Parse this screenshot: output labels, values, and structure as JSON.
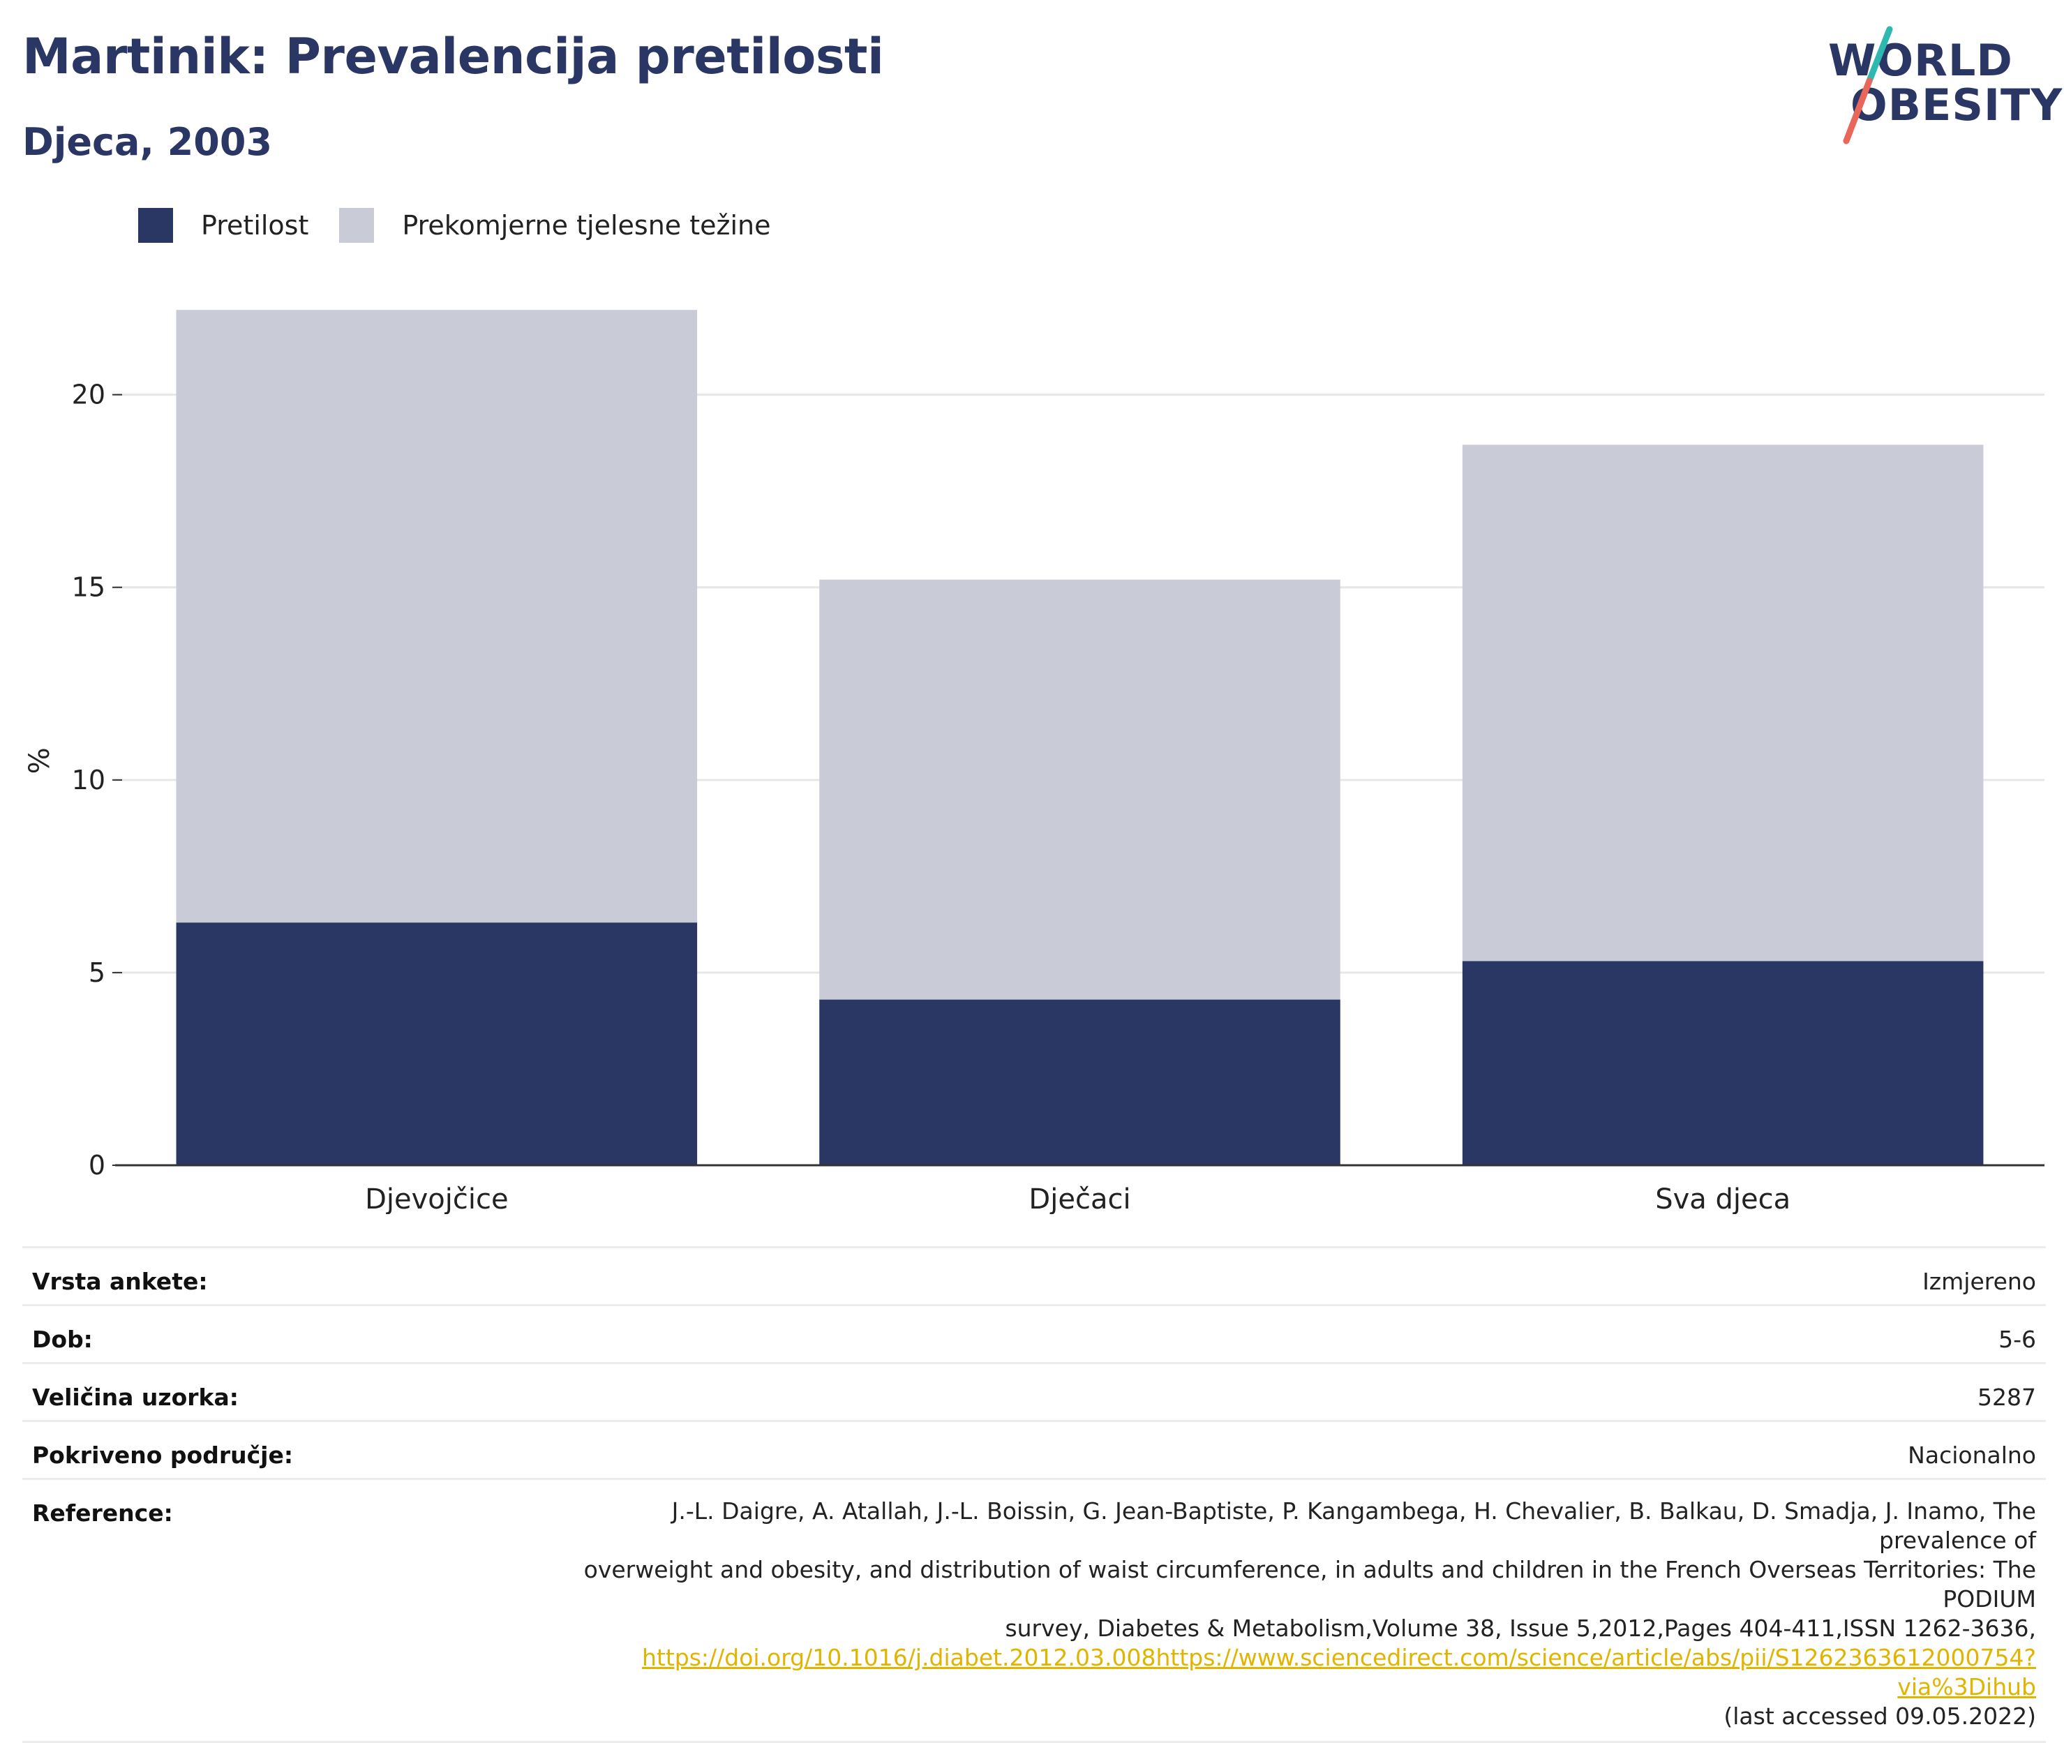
{
  "header": {
    "title": "Martinik: Prevalencija pretilosti",
    "subtitle": "Djeca, 2003"
  },
  "logo": {
    "line1": "WORLD",
    "line2": "OBESITY"
  },
  "colors": {
    "title": "#2a3663",
    "obesity": "#2a3663",
    "overweight": "#c9ccd7",
    "logo_slash_teal": "#2fb8b0",
    "logo_slash_coral": "#e8675a",
    "link": "#e0b400"
  },
  "chart_data": {
    "type": "bar",
    "stacked": true,
    "categories": [
      "Djevojčice",
      "Dječaci",
      "Sva djeca"
    ],
    "series": [
      {
        "name": "Pretilost",
        "values": [
          6.3,
          4.3,
          5.3
        ]
      },
      {
        "name": "Prekomjerne tjelesne težine",
        "values": [
          15.9,
          10.9,
          13.4
        ]
      }
    ],
    "totals": [
      22.2,
      15.2,
      18.7
    ],
    "ylabel": "%",
    "ylim": [
      0,
      23
    ],
    "yticks": [
      0,
      5,
      10,
      15,
      20
    ],
    "grid": true,
    "legend": "top-left"
  },
  "meta": {
    "survey_type": {
      "label": "Vrsta ankete:",
      "value": "Izmjereno"
    },
    "age": {
      "label": "Dob:",
      "value": "5-6"
    },
    "sample": {
      "label": "Veličina uzorka:",
      "value": "5287"
    },
    "coverage": {
      "label": "Pokriveno područje:",
      "value": "Nacionalno"
    },
    "reference": {
      "label": "Reference:",
      "line1": "J.-L. Daigre, A. Atallah, J.-L. Boissin, G. Jean-Baptiste, P. Kangambega, H. Chevalier, B. Balkau, D. Smadja, J. Inamo, The prevalence of",
      "line2": "overweight and obesity, and distribution of waist circumference, in adults and children in the French Overseas Territories: The PODIUM",
      "line3": "survey, Diabetes & Metabolism,Volume 38, Issue 5,2012,Pages 404-411,ISSN 1262-3636,",
      "link": "https://doi.org/10.1016/j.diabet.2012.03.008https://www.sciencedirect.com/science/article/abs/pii/S1262363612000754?via%3Dihub",
      "accessed": "(last accessed 09.05.2022)"
    }
  }
}
